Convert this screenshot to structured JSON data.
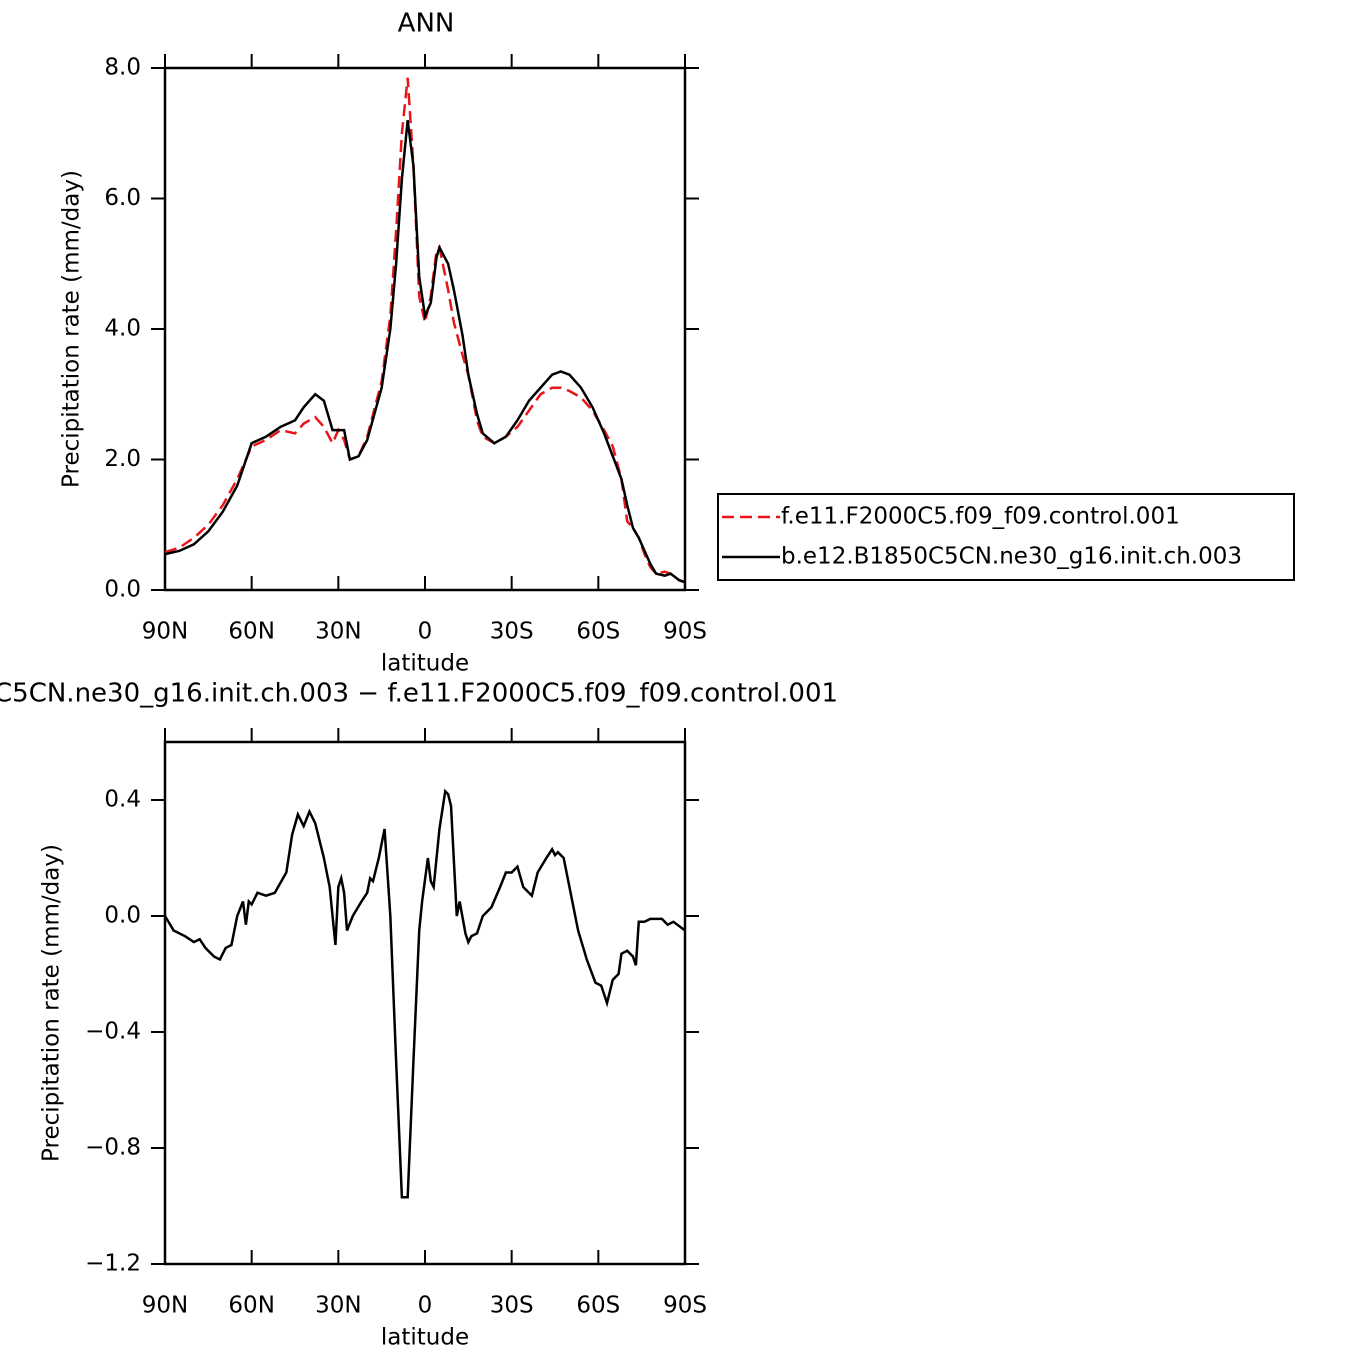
{
  "chart_data": [
    {
      "type": "line",
      "title": "ANN",
      "xlabel": "latitude",
      "ylabel": "Precipitation rate (mm/day)",
      "xlim": [
        90,
        -90
      ],
      "ylim": [
        0,
        8
      ],
      "xticks": [
        {
          "value": 90,
          "label": "90N"
        },
        {
          "value": 60,
          "label": "60N"
        },
        {
          "value": 30,
          "label": "30N"
        },
        0,
        {
          "value": -30,
          "label": "30S"
        },
        {
          "value": -60,
          "label": "60S"
        },
        {
          "value": -90,
          "label": "90S"
        }
      ],
      "yticks": [
        {
          "value": 0,
          "label": "0.0"
        },
        {
          "value": 2,
          "label": "2.0"
        },
        {
          "value": 4,
          "label": "4.0"
        },
        {
          "value": 6,
          "label": "6.0"
        },
        {
          "value": 8,
          "label": "8.0"
        }
      ],
      "legend": "right",
      "x": [
        90,
        85,
        80,
        75,
        70,
        65,
        60,
        55,
        50,
        45,
        42,
        38,
        35,
        32,
        30,
        28,
        26,
        23,
        20,
        15,
        12,
        10,
        8,
        6,
        4,
        2,
        0,
        -2,
        -4,
        -5,
        -8,
        -10,
        -13,
        -15,
        -18,
        -20,
        -24,
        -28,
        -32,
        -36,
        -40,
        -44,
        -47,
        -50,
        -54,
        -58,
        -62,
        -65,
        -68,
        -70,
        -72,
        -74,
        -76,
        -78,
        -80,
        -83,
        -85,
        -88,
        -90
      ],
      "series": [
        {
          "name": "f.e11.F2000C5.f09_f09.control.001",
          "color": "#e8161b",
          "dashed": true,
          "values": [
            0.58,
            0.65,
            0.8,
            1.0,
            1.3,
            1.7,
            2.2,
            2.3,
            2.45,
            2.4,
            2.55,
            2.65,
            2.5,
            2.25,
            2.45,
            2.3,
            2.0,
            2.05,
            2.35,
            3.2,
            4.2,
            5.5,
            7.0,
            7.85,
            6.5,
            4.5,
            4.1,
            4.5,
            5.2,
            5.25,
            4.6,
            4.1,
            3.6,
            3.3,
            2.6,
            2.35,
            2.25,
            2.35,
            2.5,
            2.75,
            3.0,
            3.1,
            3.1,
            3.05,
            2.95,
            2.75,
            2.45,
            2.2,
            1.7,
            1.05,
            0.95,
            0.8,
            0.55,
            0.35,
            0.25,
            0.28,
            0.25,
            0.15,
            0.12
          ]
        },
        {
          "name": "b.e12.B1850C5CN.ne30_g16.init.ch.003",
          "color": "#000000",
          "dashed": false,
          "values": [
            0.55,
            0.6,
            0.7,
            0.9,
            1.2,
            1.6,
            2.25,
            2.35,
            2.5,
            2.6,
            2.8,
            3.0,
            2.9,
            2.45,
            2.45,
            2.45,
            2.0,
            2.05,
            2.3,
            3.1,
            4.0,
            5.0,
            6.3,
            7.2,
            6.5,
            4.8,
            4.2,
            4.4,
            5.1,
            5.25,
            5.0,
            4.6,
            3.9,
            3.3,
            2.7,
            2.4,
            2.25,
            2.35,
            2.6,
            2.9,
            3.1,
            3.3,
            3.35,
            3.3,
            3.1,
            2.8,
            2.4,
            2.05,
            1.7,
            1.3,
            0.95,
            0.8,
            0.6,
            0.4,
            0.25,
            0.22,
            0.25,
            0.15,
            0.12
          ]
        }
      ]
    },
    {
      "type": "line",
      "title": "C5CN.ne30_g16.init.ch.003 − f.e11.F2000C5.f09_f09.control.001",
      "xlabel": "latitude",
      "ylabel": "Precipitation rate (mm/day)",
      "xlim": [
        90,
        -90
      ],
      "ylim": [
        -1.2,
        0.6
      ],
      "xticks": [
        {
          "value": 90,
          "label": "90N"
        },
        {
          "value": 60,
          "label": "60N"
        },
        {
          "value": 30,
          "label": "30N"
        },
        0,
        {
          "value": -30,
          "label": "30S"
        },
        {
          "value": -60,
          "label": "60S"
        },
        {
          "value": -90,
          "label": "90S"
        }
      ],
      "yticks": [
        {
          "value": -1.2,
          "label": "−1.2"
        },
        {
          "value": -0.8,
          "label": "−0.8"
        },
        {
          "value": -0.4,
          "label": "−0.4"
        },
        {
          "value": 0,
          "label": "0.0"
        },
        0.4
      ],
      "x": [
        90,
        87,
        83,
        80,
        78,
        76,
        73,
        71,
        69,
        67,
        65,
        63,
        62,
        61,
        60,
        58,
        55,
        52,
        48,
        46,
        44,
        42,
        40,
        38,
        35,
        33,
        31,
        30,
        29,
        28,
        27,
        25,
        22,
        20,
        19,
        18,
        16,
        14,
        12,
        10,
        8,
        6,
        4,
        2,
        1,
        -1,
        -2,
        -3,
        -5,
        -7,
        -8,
        -9,
        -11,
        -12,
        -14,
        -15,
        -16,
        -18,
        -20,
        -23,
        -26,
        -28,
        -30,
        -32,
        -34,
        -37,
        -39,
        -42,
        -44,
        -45,
        -46,
        -48,
        -50,
        -53,
        -56,
        -59,
        -61,
        -63,
        -65,
        -67,
        -68,
        -70,
        -72,
        -73,
        -74,
        -76,
        -78,
        -82,
        -84,
        -86,
        -90
      ],
      "series": [
        {
          "color": "#000000",
          "dashed": false,
          "values": [
            0.0,
            -0.05,
            -0.07,
            -0.09,
            -0.08,
            -0.11,
            -0.14,
            -0.15,
            -0.11,
            -0.1,
            0.0,
            0.05,
            -0.03,
            0.05,
            0.04,
            0.08,
            0.07,
            0.08,
            0.15,
            0.28,
            0.35,
            0.31,
            0.36,
            0.32,
            0.2,
            0.1,
            -0.1,
            0.1,
            0.13,
            0.08,
            -0.05,
            0.0,
            0.05,
            0.08,
            0.13,
            0.12,
            0.2,
            0.3,
            0.0,
            -0.5,
            -0.97,
            -0.97,
            -0.5,
            -0.05,
            0.05,
            0.2,
            0.12,
            0.1,
            0.3,
            0.43,
            0.42,
            0.38,
            0.0,
            0.05,
            -0.06,
            -0.09,
            -0.07,
            -0.06,
            0.0,
            0.03,
            0.1,
            0.15,
            0.15,
            0.17,
            0.1,
            0.07,
            0.15,
            0.2,
            0.23,
            0.21,
            0.22,
            0.2,
            0.1,
            -0.05,
            -0.15,
            -0.23,
            -0.24,
            -0.3,
            -0.22,
            -0.2,
            -0.13,
            -0.12,
            -0.14,
            -0.17,
            -0.02,
            -0.02,
            -0.01,
            -0.01,
            -0.03,
            -0.02,
            -0.05
          ]
        }
      ]
    }
  ]
}
